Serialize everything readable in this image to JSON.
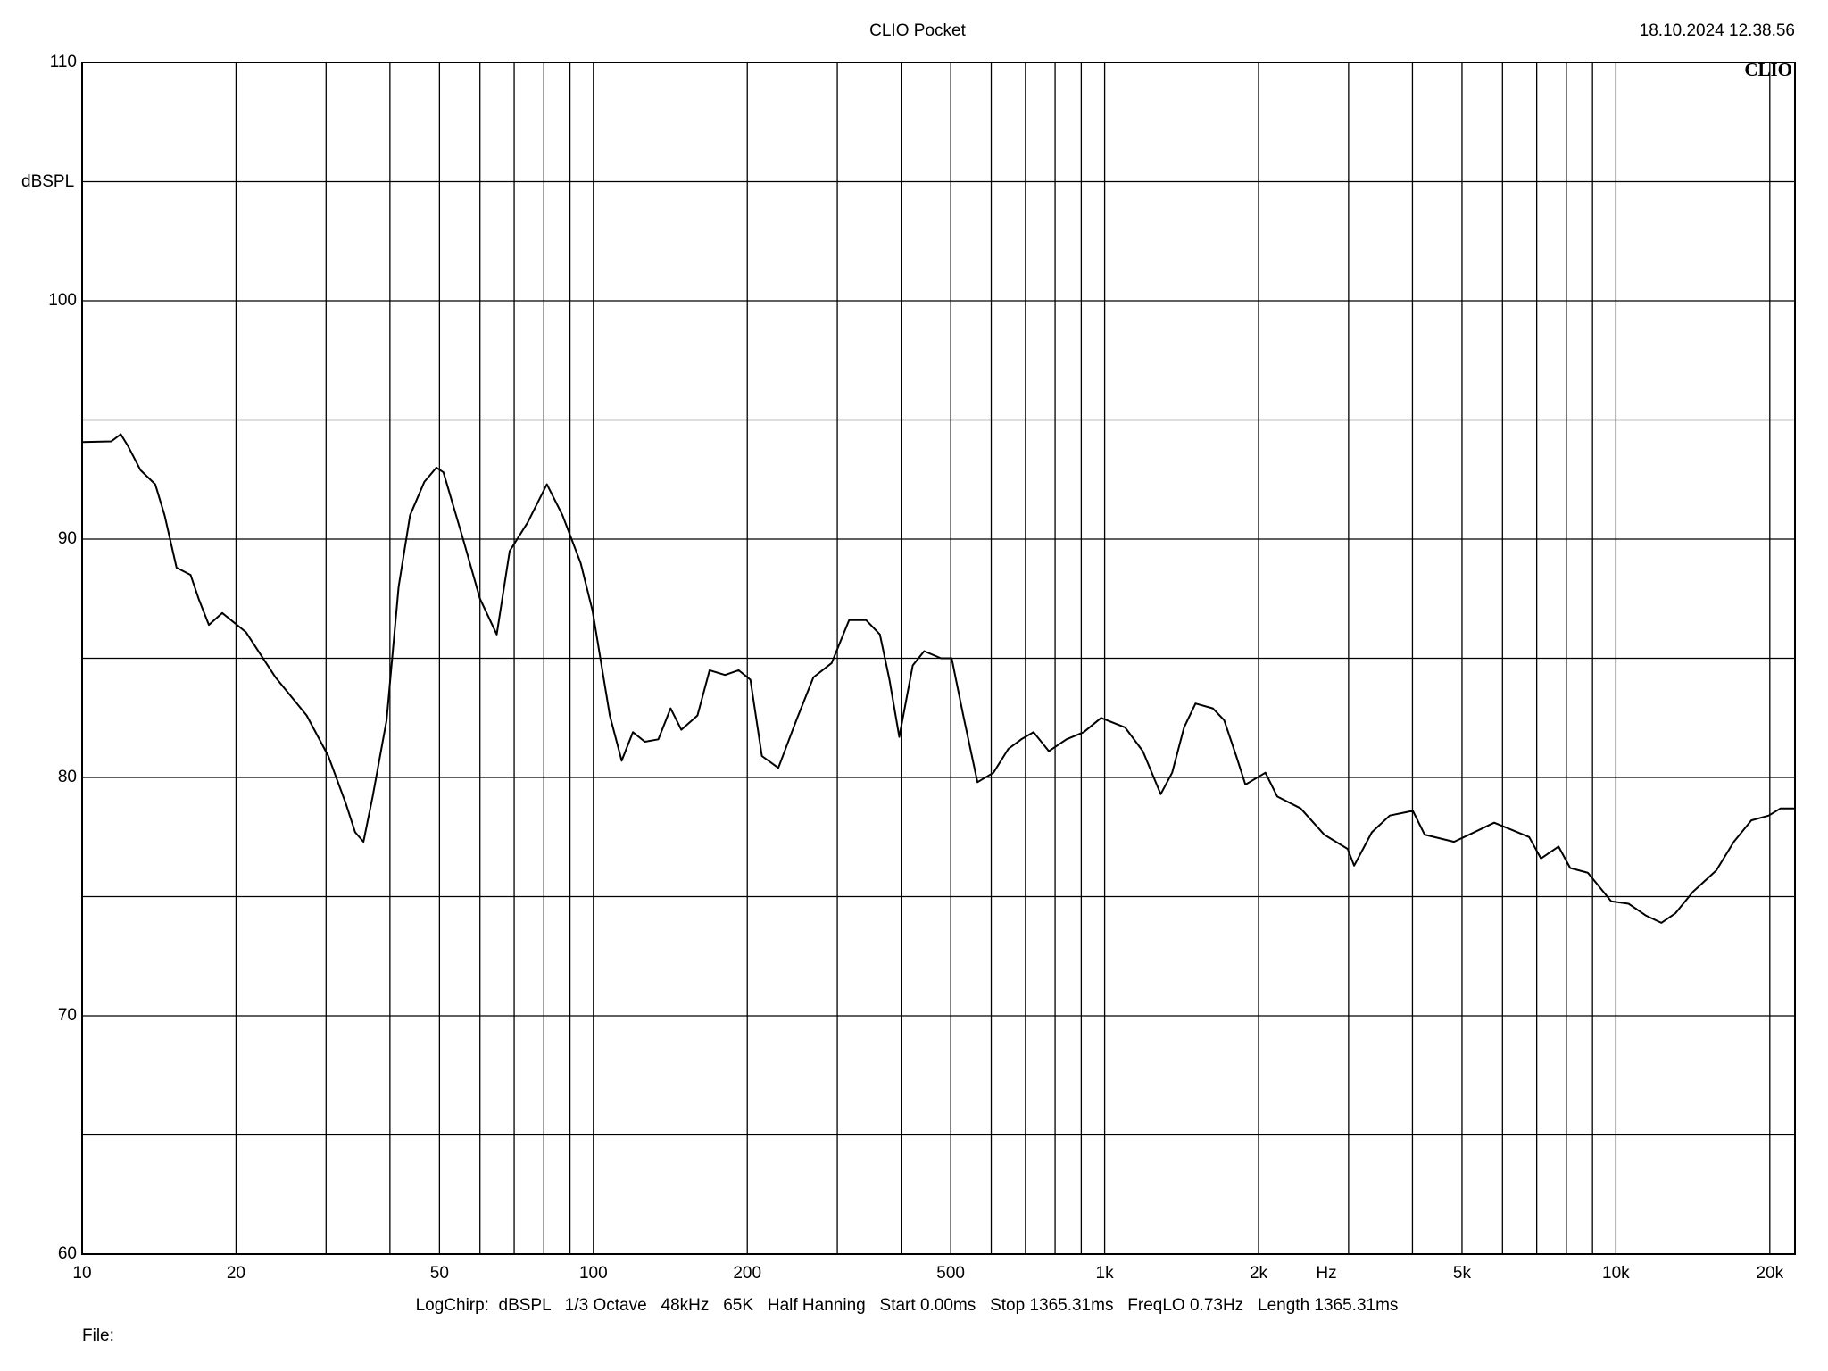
{
  "chart_data": {
    "type": "line",
    "title": "CLIO Pocket",
    "timestamp": "18.10.2024 12.38.56",
    "brand": "CLIO",
    "y_label": "dBSPL",
    "x_label": "Hz",
    "footer": "LogChirp:  dBSPL   1/3 Octave   48kHz   65K   Half Hanning   Start 0.00ms   Stop 1365.31ms   FreqLO 0.73Hz   Length 1365.31ms",
    "file_label": "File:",
    "xscale": "log",
    "grid": true,
    "color": "#000000",
    "xlim": [
      10,
      22400
    ],
    "ylim": [
      60,
      110
    ],
    "xticks": [
      10,
      20,
      50,
      100,
      200,
      500,
      {
        "value": 1000,
        "label": "1k"
      },
      {
        "value": 2000,
        "label": "2k"
      },
      {
        "value": 5000,
        "label": "5k"
      },
      {
        "value": 10000,
        "label": "10k"
      },
      {
        "value": 20000,
        "label": "20k"
      }
    ],
    "xminor": [
      30,
      40,
      60,
      70,
      80,
      90,
      300,
      400,
      600,
      700,
      800,
      900,
      3000,
      4000,
      6000,
      7000,
      8000,
      9000
    ],
    "yticks": [
      60,
      70,
      80,
      90,
      100,
      110
    ],
    "yminor": [
      65,
      75,
      85,
      95,
      105
    ],
    "x": [
      10,
      11.4,
      11.9,
      12.3,
      13.0,
      13.9,
      14.5,
      15.3,
      16.3,
      16.9,
      17.7,
      18.8,
      20.9,
      23.9,
      27.5,
      30.3,
      32.8,
      34.2,
      35.5,
      37.0,
      39.4,
      41.6,
      43.8,
      46.7,
      49.3,
      50.9,
      55.6,
      60.0,
      64.7,
      68.6,
      74.4,
      81.1,
      87.0,
      94.4,
      99.6,
      107.7,
      113.6,
      119.5,
      126.1,
      134.0,
      141.6,
      148.6,
      159.8,
      168.8,
      180.9,
      192.3,
      202.8,
      213.6,
      230.0,
      249.5,
      269.4,
      292.5,
      316.4,
      341.6,
      363.5,
      379.4,
      396.6,
      421.3,
      443.6,
      478.7,
      502,
      529,
      564,
      606,
      648,
      687,
      726,
      778,
      842,
      910,
      984,
      1096,
      1188,
      1287,
      1355,
      1430,
      1506,
      1628,
      1713,
      1809,
      1885,
      2063,
      2176,
      2418,
      2688,
      2988,
      3076,
      3332,
      3611,
      4008,
      4225,
      4823,
      5405,
      5779,
      6253,
      6766,
      7135,
      7722,
      8141,
      8812,
      9791,
      10590,
      11460,
      12270,
      13070,
      14140,
      15720,
      17010,
      18400,
      19910,
      20990,
      22400
    ],
    "values": [
      94.07,
      94.1,
      94.4,
      93.9,
      92.9,
      92.3,
      91.0,
      88.8,
      88.5,
      87.5,
      86.4,
      86.9,
      86.1,
      84.2,
      82.6,
      80.9,
      78.9,
      77.7,
      77.3,
      79.2,
      82.4,
      88.0,
      91.0,
      92.4,
      93.0,
      92.8,
      90.0,
      87.5,
      86.0,
      89.5,
      90.7,
      92.3,
      91.0,
      89.0,
      87.0,
      82.6,
      80.7,
      81.9,
      81.5,
      81.6,
      82.9,
      82.0,
      82.6,
      84.5,
      84.3,
      84.5,
      84.1,
      80.9,
      80.4,
      82.4,
      84.2,
      84.8,
      86.6,
      86.6,
      86.0,
      84.1,
      81.7,
      84.7,
      85.3,
      85.0,
      85.0,
      82.6,
      79.8,
      80.2,
      81.2,
      81.6,
      81.9,
      81.1,
      81.6,
      81.9,
      82.5,
      82.1,
      81.1,
      79.3,
      80.2,
      82.1,
      83.1,
      82.9,
      82.4,
      80.9,
      79.7,
      80.2,
      79.2,
      78.7,
      77.6,
      77.0,
      76.3,
      77.7,
      78.4,
      78.6,
      77.6,
      77.3,
      77.8,
      78.1,
      77.8,
      77.5,
      76.6,
      77.1,
      76.2,
      76.0,
      74.8,
      74.7,
      74.2,
      73.9,
      74.3,
      75.2,
      76.1,
      77.3,
      78.2,
      78.4,
      78.7,
      78.7
    ]
  }
}
